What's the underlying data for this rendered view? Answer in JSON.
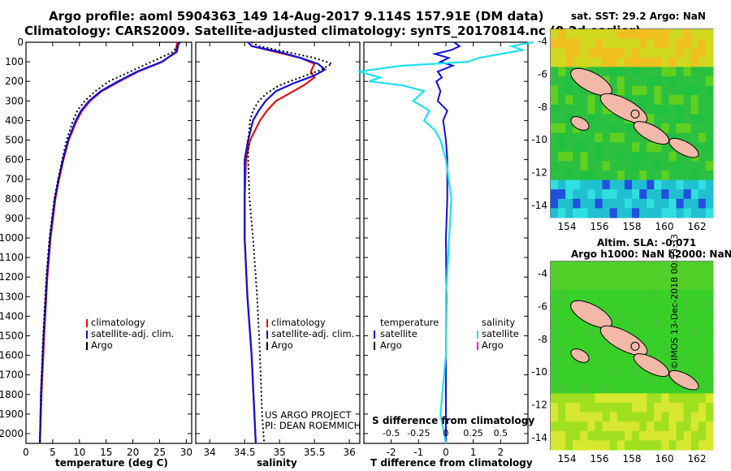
{
  "header": {
    "line1": "Argo profile: aoml 5904363_149 14-Aug-2017 9.114S 157.91E (DM data)",
    "line2": "Climatology: CARS2009. Satellite-adjusted climatology: synTS_20170814.nc (0.2d earlier)"
  },
  "colors": {
    "climatology": "#e01010",
    "satellite": "#1010e0",
    "argo": "#000000",
    "s_satellite": "#20e0f0",
    "s_argo": "#ff00ff"
  },
  "chart_data": [
    {
      "type": "line",
      "xlabel": "temperature (deg C)",
      "xlim": [
        0,
        31
      ],
      "xticks": [
        "0",
        "5",
        "10",
        "15",
        "20",
        "25",
        "30"
      ],
      "ylim": [
        0,
        2050
      ],
      "yticks": [
        "0",
        "100",
        "200",
        "300",
        "400",
        "500",
        "600",
        "700",
        "800",
        "900",
        "1000",
        "1100",
        "1200",
        "1300",
        "1400",
        "1500",
        "1600",
        "1700",
        "1800",
        "1900",
        "2000"
      ],
      "legend": [
        "climatology",
        "satellite-adj. clim.",
        "Argo"
      ],
      "series": [
        {
          "name": "climatology",
          "depth": [
            0,
            50,
            100,
            150,
            200,
            250,
            300,
            350,
            400,
            500,
            600,
            700,
            800,
            1000,
            1200,
            1500,
            1800,
            2050
          ],
          "values": [
            28.3,
            28.0,
            25.5,
            21.0,
            17.5,
            14.2,
            12.0,
            10.5,
            9.5,
            8.0,
            7.0,
            6.2,
            5.5,
            4.6,
            4.0,
            3.4,
            2.9,
            2.6
          ]
        },
        {
          "name": "satellite-adj. clim.",
          "depth": [
            0,
            50,
            100,
            150,
            200,
            250,
            300,
            350,
            400,
            500,
            600,
            700,
            800,
            1000,
            1200,
            1500,
            1800,
            2050
          ],
          "values": [
            28.6,
            28.2,
            25.4,
            20.8,
            17.2,
            14.0,
            11.8,
            10.3,
            9.3,
            7.9,
            6.9,
            6.1,
            5.4,
            4.5,
            3.9,
            3.3,
            2.8,
            2.6
          ]
        },
        {
          "name": "Argo",
          "depth": [
            0,
            50,
            100,
            150,
            200,
            250,
            300,
            350,
            400,
            500,
            600,
            700,
            800,
            1000,
            1200,
            1500,
            1800,
            2050
          ],
          "values": [
            28.8,
            27.5,
            23.5,
            19.5,
            15.5,
            13.0,
            11.0,
            9.6,
            8.8,
            7.6,
            6.8,
            6.0,
            5.3,
            4.4,
            3.8,
            3.2,
            2.8,
            2.6
          ]
        }
      ]
    },
    {
      "type": "line",
      "xlabel": "salinity",
      "xlim": [
        33.8,
        36.15
      ],
      "xticks": [
        "34",
        "34.5",
        "35",
        "35.5",
        "36"
      ],
      "legend": [
        "climatology",
        "satellite-adj. clim.",
        "Argo"
      ],
      "annotation1": "US ARGO PROJECT",
      "annotation2": "PI: DEAN ROEMMICH",
      "series": [
        {
          "name": "climatology",
          "depth": [
            0,
            20,
            50,
            80,
            110,
            150,
            180,
            220,
            260,
            300,
            350,
            400,
            500,
            600,
            800,
            1000,
            1300,
            1600,
            1900,
            2050
          ],
          "values": [
            34.55,
            34.6,
            34.95,
            35.3,
            35.5,
            35.45,
            35.5,
            35.35,
            35.15,
            34.95,
            34.82,
            34.72,
            34.58,
            34.52,
            34.5,
            34.5,
            34.54,
            34.6,
            34.64,
            34.66
          ]
        },
        {
          "name": "satellite-adj. clim.",
          "depth": [
            0,
            20,
            50,
            80,
            110,
            140,
            170,
            210,
            250,
            300,
            350,
            400,
            500,
            600,
            800,
            1000,
            1300,
            1600,
            1900,
            2050
          ],
          "values": [
            34.55,
            34.6,
            35.0,
            35.3,
            35.55,
            35.65,
            35.5,
            35.2,
            34.95,
            34.8,
            34.7,
            34.62,
            34.55,
            34.5,
            34.5,
            34.5,
            34.54,
            34.6,
            34.64,
            34.66
          ]
        },
        {
          "name": "Argo",
          "depth": [
            0,
            20,
            50,
            80,
            110,
            140,
            180,
            220,
            260,
            300,
            350,
            400,
            500,
            600,
            800,
            1000,
            1300,
            1600,
            1900,
            2050
          ],
          "values": [
            34.6,
            34.7,
            35.1,
            35.5,
            35.75,
            35.6,
            35.3,
            35.0,
            34.82,
            34.7,
            34.62,
            34.58,
            34.55,
            34.55,
            34.57,
            34.62,
            34.68,
            34.72,
            34.75,
            34.78
          ]
        }
      ]
    },
    {
      "type": "line",
      "xlabel": "T difference from climatology",
      "xlabel_s": "S difference from climatology",
      "xlim": [
        -3,
        3
      ],
      "xticks": [
        "-2",
        "-1",
        "0",
        "1",
        "2"
      ],
      "sticks": [
        "-0.5",
        "-0.25",
        "0",
        "0.25",
        "0.5"
      ],
      "legend_t_title": "temperature",
      "legend_s_title": "salinity",
      "legend_t": [
        "satellite",
        "Argo"
      ],
      "legend_s": [
        "satellite",
        "Argo"
      ],
      "series": [
        {
          "name": "T satellite",
          "depth": [
            0,
            20,
            40,
            60,
            80,
            100,
            120,
            150,
            180,
            200,
            250,
            300,
            350,
            400,
            500,
            600,
            800,
            1000,
            1300,
            1500,
            1700,
            1900,
            2050
          ],
          "values": [
            0.3,
            0.5,
            0.2,
            -0.4,
            0.1,
            -0.2,
            0.25,
            -0.3,
            -0.15,
            -0.35,
            -0.2,
            -0.3,
            0.05,
            -0.1,
            0.0,
            0.05,
            0.05,
            0.0,
            0.02,
            0.0,
            0.0,
            0.0,
            0.0
          ]
        },
        {
          "name": "S satellite",
          "depth": [
            0,
            20,
            40,
            60,
            80,
            100,
            120,
            150,
            180,
            200,
            220,
            250,
            300,
            350,
            400,
            450,
            500,
            600,
            800,
            1000,
            1300,
            1600,
            1900,
            2050
          ],
          "values": [
            0.8,
            0.6,
            0.7,
            0.5,
            0.3,
            0.2,
            -0.4,
            -0.8,
            -0.6,
            -0.7,
            -0.4,
            -0.2,
            -0.3,
            -0.15,
            -0.2,
            -0.1,
            -0.05,
            0.0,
            0.05,
            0.03,
            0.0,
            0.0,
            -0.05,
            0.0
          ]
        }
      ]
    }
  ],
  "maps": {
    "top_title": "sat. SST: 29.2 Argo: NaN",
    "bottom_title1": "Altim. SLA: -0.071",
    "bottom_title2": "Argo h1000: NaN h2000: NaN",
    "yticks": [
      "-4",
      "-6",
      "-8",
      "-10",
      "-12",
      "-14"
    ],
    "xticks": [
      "154",
      "156",
      "158",
      "160",
      "162"
    ]
  },
  "credit": "©IMOS 13-Dec-2018 00:53:33"
}
